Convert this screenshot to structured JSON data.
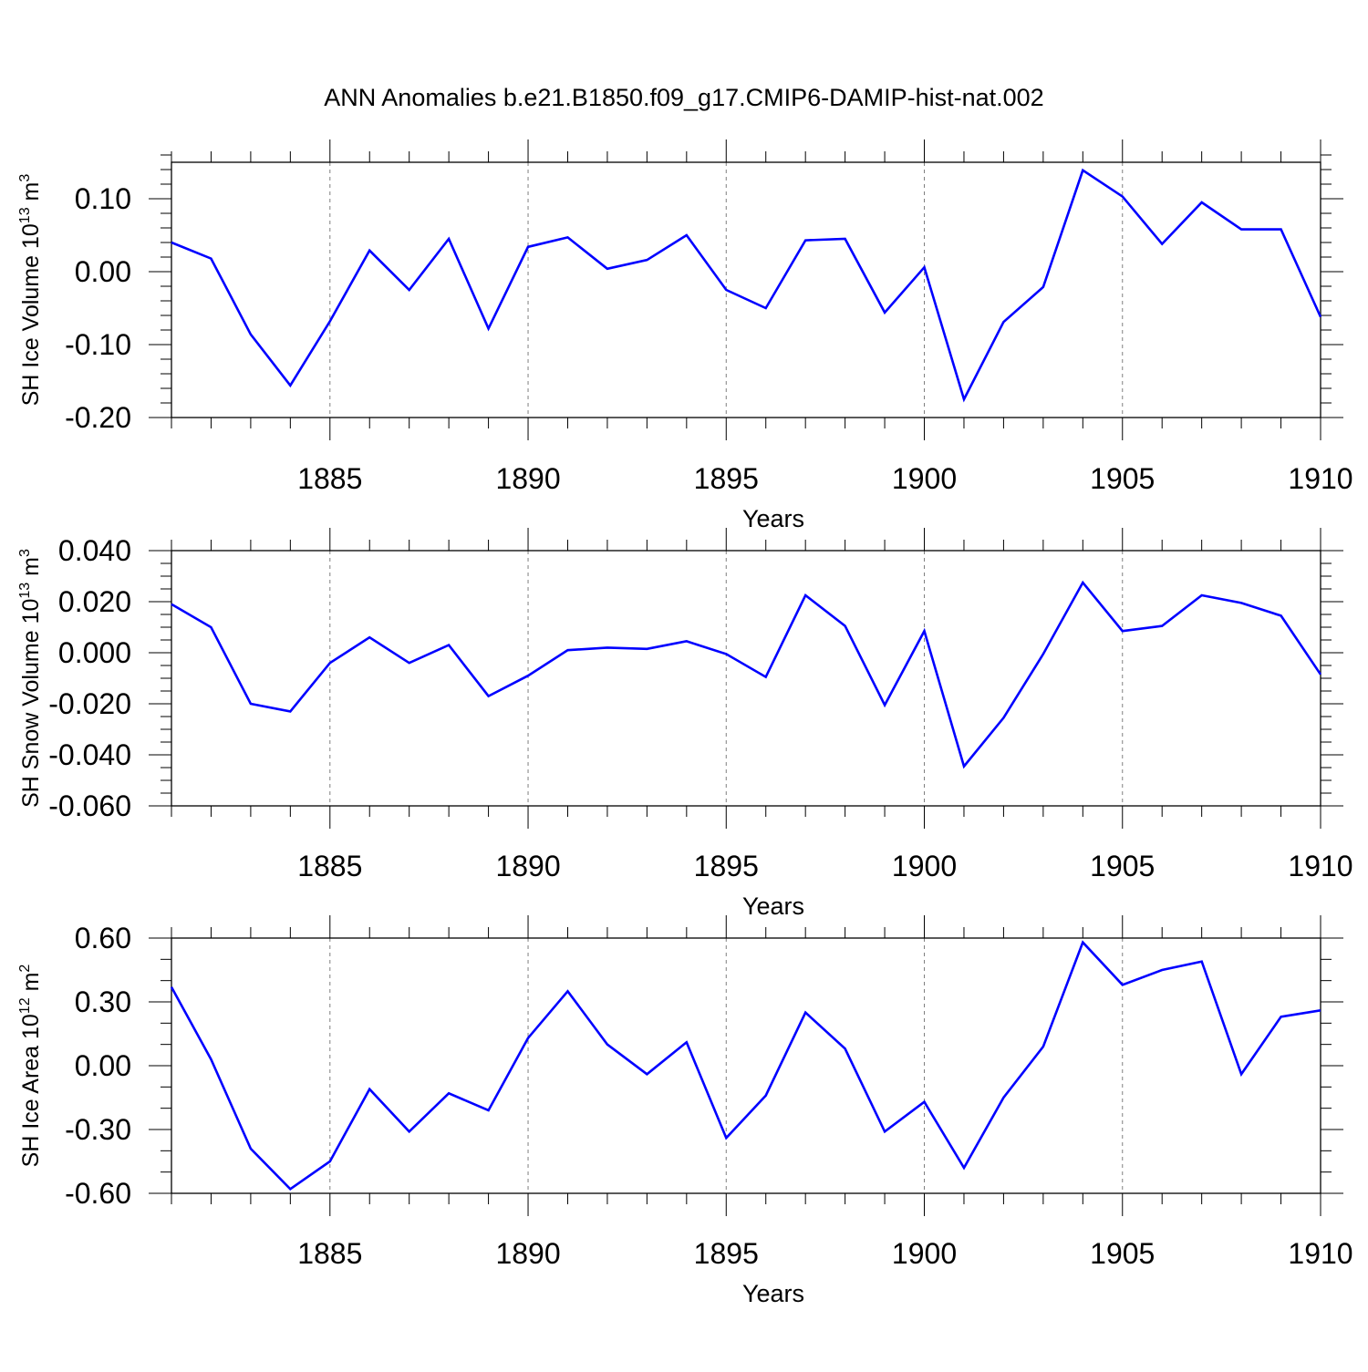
{
  "title": "ANN Anomalies b.e21.B1850.f09_g17.CMIP6-DAMIP-hist-nat.002",
  "colors": {
    "series": "#0000ff",
    "axis": "#000000",
    "grid": "#7f7f7f"
  },
  "chart_data": [
    {
      "type": "line",
      "xlabel": "Years",
      "ylabel": {
        "text": "SH Ice Volume 10",
        "exponent": "13",
        "unit": " m",
        "unit_exponent": "3"
      },
      "x": [
        1881,
        1882,
        1883,
        1884,
        1885,
        1886,
        1887,
        1888,
        1889,
        1890,
        1891,
        1892,
        1893,
        1894,
        1895,
        1896,
        1897,
        1898,
        1899,
        1900,
        1901,
        1902,
        1903,
        1904,
        1905,
        1906,
        1907,
        1908,
        1909,
        1910
      ],
      "values": [
        0.04,
        0.018,
        -0.086,
        -0.156,
        -0.068,
        0.029,
        -0.025,
        0.045,
        -0.078,
        0.034,
        0.047,
        0.004,
        0.016,
        0.05,
        -0.025,
        -0.05,
        0.043,
        0.045,
        -0.056,
        0.006,
        -0.175,
        -0.069,
        -0.021,
        0.139,
        0.103,
        0.038,
        0.095,
        0.058,
        0.058,
        -0.062
      ],
      "xlim": [
        1881,
        1910
      ],
      "ylim": [
        -0.2,
        0.15
      ],
      "xticks": [
        "1885",
        "1890",
        "1895",
        "1900",
        "1905",
        "1910"
      ],
      "xtick_values": [
        1885,
        1890,
        1895,
        1900,
        1905,
        1910
      ],
      "yticks": [
        "0.10",
        "0.00",
        "-0.10",
        "-0.20"
      ],
      "ytick_values": [
        0.1,
        0.0,
        -0.1,
        -0.2
      ],
      "yminor_step": 0.02,
      "grid": "vertical dashed at major x ticks"
    },
    {
      "type": "line",
      "xlabel": "Years",
      "ylabel": {
        "text": "SH Snow Volume 10",
        "exponent": "13",
        "unit": " m",
        "unit_exponent": "3"
      },
      "x": [
        1881,
        1882,
        1883,
        1884,
        1885,
        1886,
        1887,
        1888,
        1889,
        1890,
        1891,
        1892,
        1893,
        1894,
        1895,
        1896,
        1897,
        1898,
        1899,
        1900,
        1901,
        1902,
        1903,
        1904,
        1905,
        1906,
        1907,
        1908,
        1909,
        1910
      ],
      "values": [
        0.019,
        0.01,
        -0.02,
        -0.023,
        -0.004,
        0.006,
        -0.004,
        0.003,
        -0.017,
        -0.009,
        0.001,
        0.002,
        0.0015,
        0.0045,
        -0.0005,
        -0.0095,
        0.0225,
        0.0105,
        -0.0205,
        0.0085,
        -0.0445,
        -0.0255,
        -0.0005,
        0.0275,
        0.0085,
        0.0105,
        0.0225,
        0.0195,
        0.0145,
        -0.0085
      ],
      "xlim": [
        1881,
        1910
      ],
      "ylim": [
        -0.06,
        0.04
      ],
      "xticks": [
        "1885",
        "1890",
        "1895",
        "1900",
        "1905",
        "1910"
      ],
      "xtick_values": [
        1885,
        1890,
        1895,
        1900,
        1905,
        1910
      ],
      "yticks": [
        "0.040",
        "0.020",
        "0.000",
        "-0.020",
        "-0.040",
        "-0.060"
      ],
      "ytick_values": [
        0.04,
        0.02,
        0.0,
        -0.02,
        -0.04,
        -0.06
      ],
      "yminor_step": 0.005,
      "grid": "vertical dashed at major x ticks"
    },
    {
      "type": "line",
      "xlabel": "Years",
      "ylabel": {
        "text": "SH Ice Area 10",
        "exponent": "12",
        "unit": " m",
        "unit_exponent": "2"
      },
      "x": [
        1881,
        1882,
        1883,
        1884,
        1885,
        1886,
        1887,
        1888,
        1889,
        1890,
        1891,
        1892,
        1893,
        1894,
        1895,
        1896,
        1897,
        1898,
        1899,
        1900,
        1901,
        1902,
        1903,
        1904,
        1905,
        1906,
        1907,
        1908,
        1909,
        1910
      ],
      "values": [
        0.37,
        0.03,
        -0.39,
        -0.58,
        -0.45,
        -0.11,
        -0.31,
        -0.13,
        -0.21,
        0.13,
        0.35,
        0.1,
        -0.04,
        0.11,
        -0.34,
        -0.14,
        0.25,
        0.08,
        -0.31,
        -0.17,
        -0.48,
        -0.15,
        0.09,
        0.58,
        0.38,
        0.45,
        0.49,
        -0.04,
        0.23,
        0.26
      ],
      "xlim": [
        1881,
        1910
      ],
      "ylim": [
        -0.6,
        0.6
      ],
      "xticks": [
        "1885",
        "1890",
        "1895",
        "1900",
        "1905",
        "1910"
      ],
      "xtick_values": [
        1885,
        1890,
        1895,
        1900,
        1905,
        1910
      ],
      "yticks": [
        "0.60",
        "0.30",
        "0.00",
        "-0.30",
        "-0.60"
      ],
      "ytick_values": [
        0.6,
        0.3,
        0.0,
        -0.3,
        -0.6
      ],
      "yminor_step": 0.1,
      "grid": "vertical dashed at major x ticks"
    }
  ]
}
